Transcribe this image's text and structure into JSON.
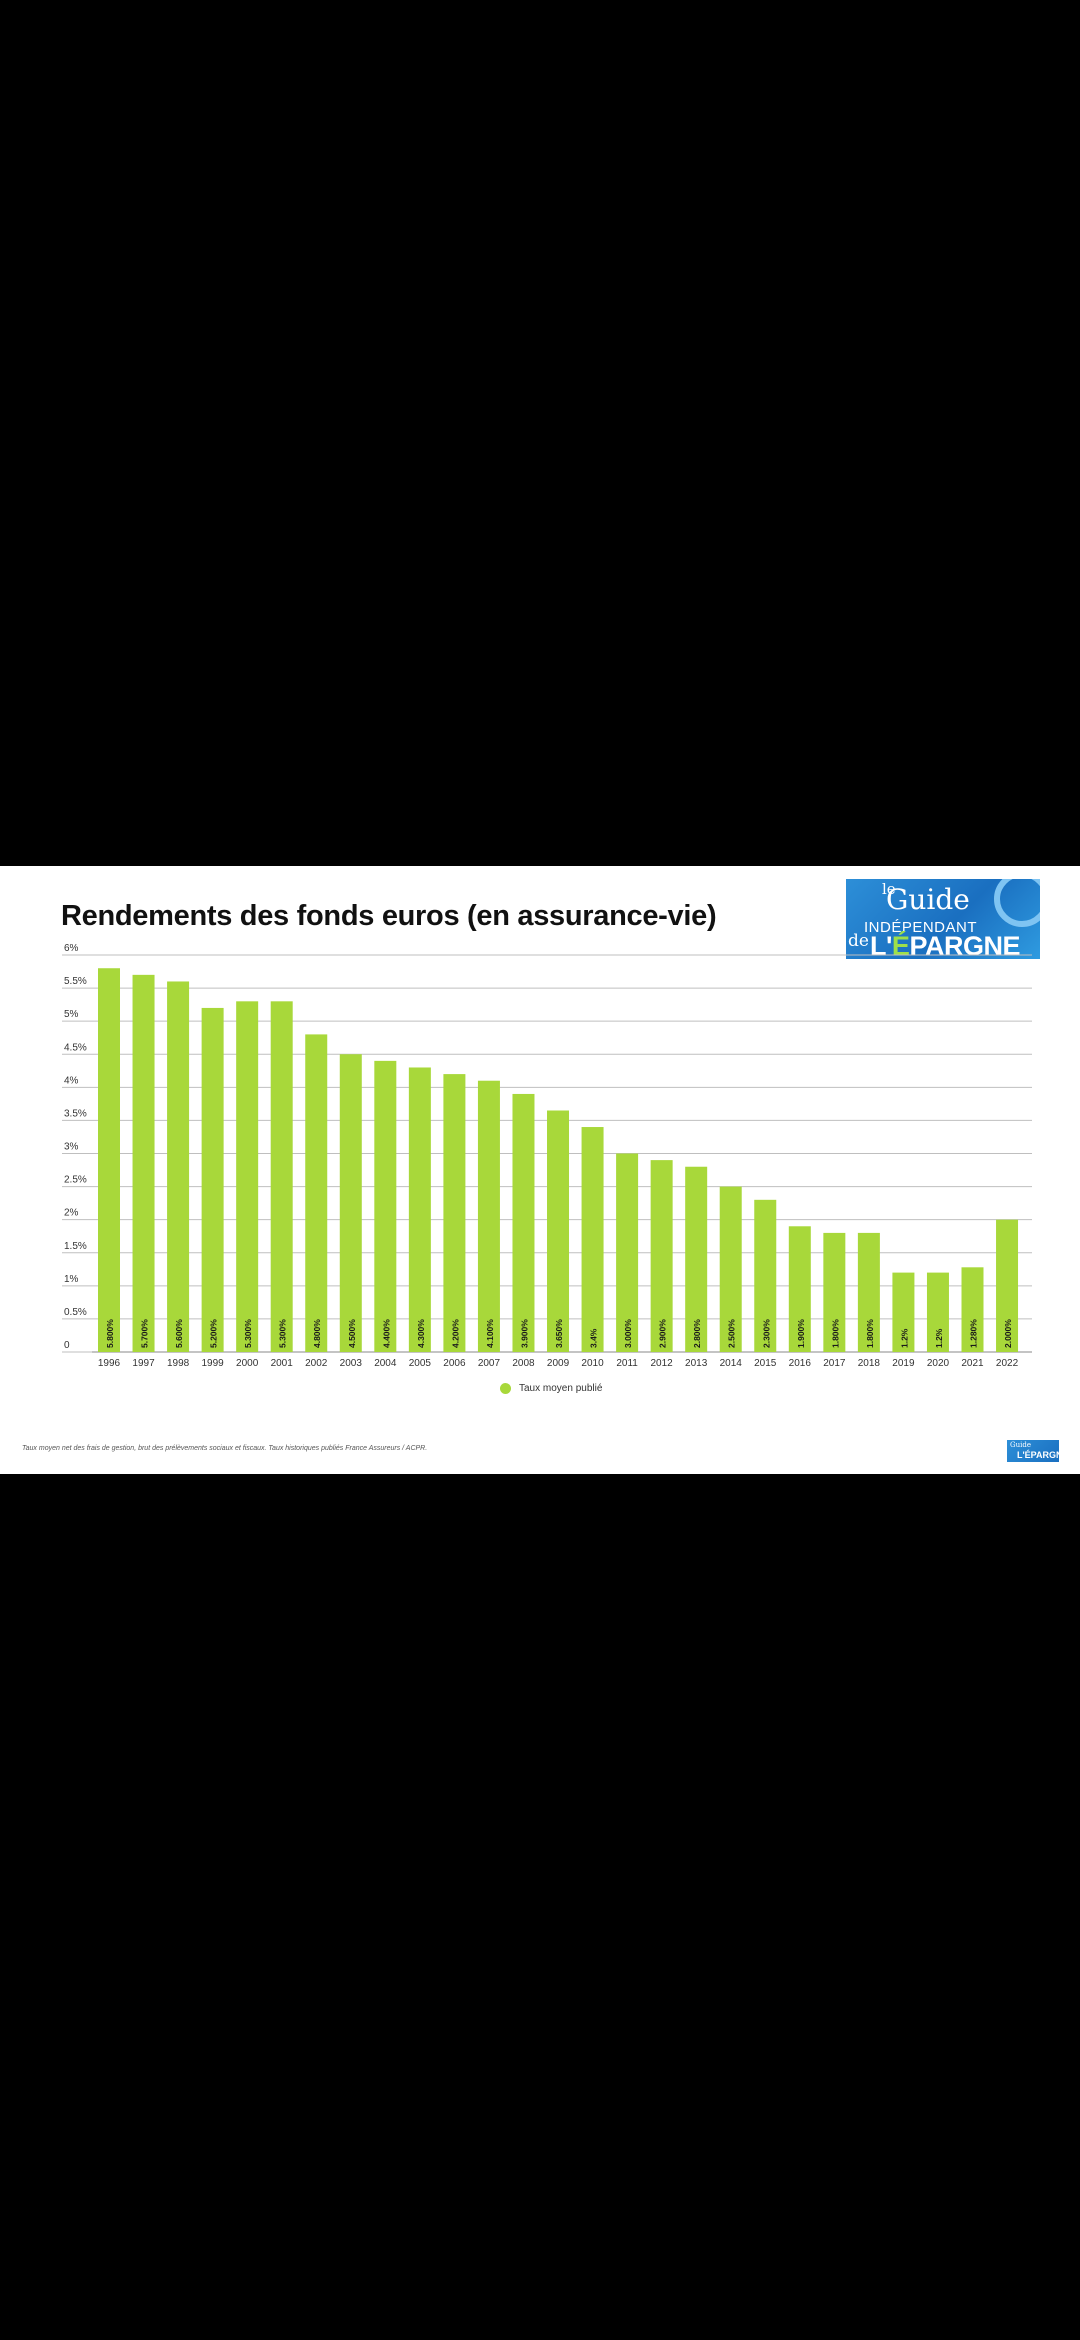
{
  "colors": {
    "bar": "#a8d83a",
    "grid": "#bfbfbf",
    "text": "#333333",
    "background": "#ffffff"
  },
  "logo": {
    "line1": "le",
    "line2": "Guide",
    "line3": "INDÉPENDANT",
    "line4": "de",
    "line5a": "L'",
    "line5b": "É",
    "line5c": "PARGNE",
    "small_line1": "Guide",
    "small_line2": "L'ÉPARGNE"
  },
  "footnote": "Taux moyen net des frais de gestion, brut des prélèvements sociaux et fiscaux. Taux historiques publiés France Assureurs / ACPR.",
  "chart_data": {
    "type": "bar",
    "title": "Rendements des fonds euros (en assurance-vie)",
    "xlabel": "",
    "ylabel": "",
    "ylim": [
      0,
      6
    ],
    "yticks": [
      "0",
      "0.5%",
      "1%",
      "1.5%",
      "2%",
      "2.5%",
      "3%",
      "3.5%",
      "4%",
      "4.5%",
      "5%",
      "5.5%",
      "6%"
    ],
    "grid": true,
    "legend_position": "bottom-center",
    "categories": [
      "1996",
      "1997",
      "1998",
      "1999",
      "2000",
      "2001",
      "2002",
      "2003",
      "2004",
      "2005",
      "2006",
      "2007",
      "2008",
      "2009",
      "2010",
      "2011",
      "2012",
      "2013",
      "2014",
      "2015",
      "2016",
      "2017",
      "2018",
      "2019",
      "2020",
      "2021",
      "2022"
    ],
    "series": [
      {
        "name": "Taux moyen publié",
        "values": [
          5.8,
          5.7,
          5.6,
          5.2,
          5.3,
          5.3,
          4.8,
          4.5,
          4.4,
          4.3,
          4.2,
          4.1,
          3.9,
          3.65,
          3.4,
          3.0,
          2.9,
          2.8,
          2.5,
          2.3,
          1.9,
          1.8,
          1.8,
          1.2,
          1.2,
          1.28,
          2.0
        ],
        "labels": [
          "5.800%",
          "5.700%",
          "5.600%",
          "5.200%",
          "5.300%",
          "5.300%",
          "4.800%",
          "4.500%",
          "4.400%",
          "4.300%",
          "4.200%",
          "4.100%",
          "3.900%",
          "3.650%",
          "3.4%",
          "3.000%",
          "2.900%",
          "2.800%",
          "2.500%",
          "2.300%",
          "1.900%",
          "1.800%",
          "1.800%",
          "1.2%",
          "1.2%",
          "1.280%",
          "2.000%"
        ]
      }
    ]
  }
}
